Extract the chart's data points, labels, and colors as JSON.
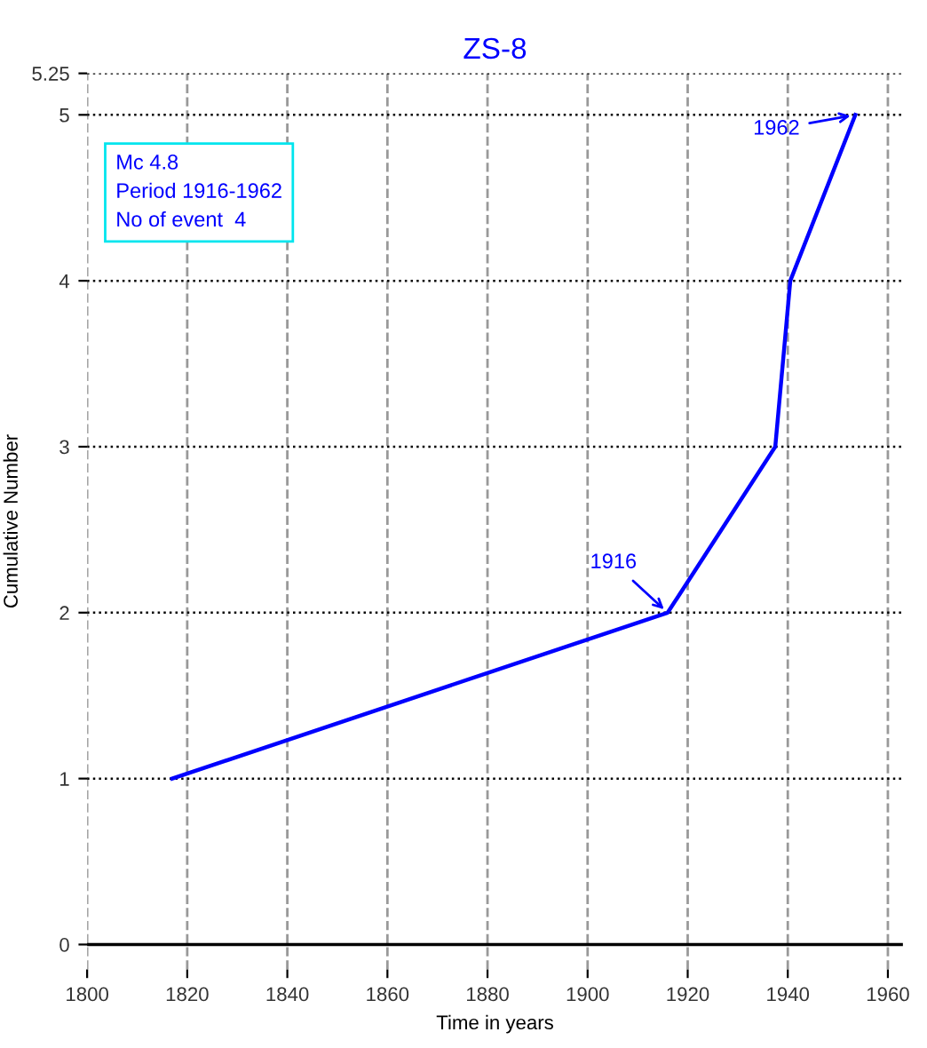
{
  "chart_data": {
    "type": "line",
    "title": "ZS-8",
    "xlabel": "Time in years",
    "ylabel": "Cumulative Number",
    "x": [
      1817,
      1916,
      1937.5,
      1940.5,
      1953.5
    ],
    "series": [
      {
        "color": "#0000ff",
        "values": [
          1,
          2,
          3,
          4,
          5
        ]
      }
    ],
    "xlim": [
      1800,
      1963
    ],
    "xticks": [
      1800,
      1820,
      1840,
      1860,
      1880,
      1900,
      1920,
      1940,
      1960
    ],
    "ylim": [
      -0.15,
      5.25
    ],
    "yticks": [
      0,
      1,
      2,
      3,
      4,
      5,
      5.25
    ],
    "grid": true,
    "marker": "none",
    "line_style": "solid",
    "annotations": [
      "Mc 4.8\nPeriod 1916-1962\nNo of event  4",
      {
        "text": "1916",
        "x": 1916,
        "y": 2
      },
      {
        "text": "1962",
        "x": 1953.5,
        "y": 5
      }
    ]
  }
}
